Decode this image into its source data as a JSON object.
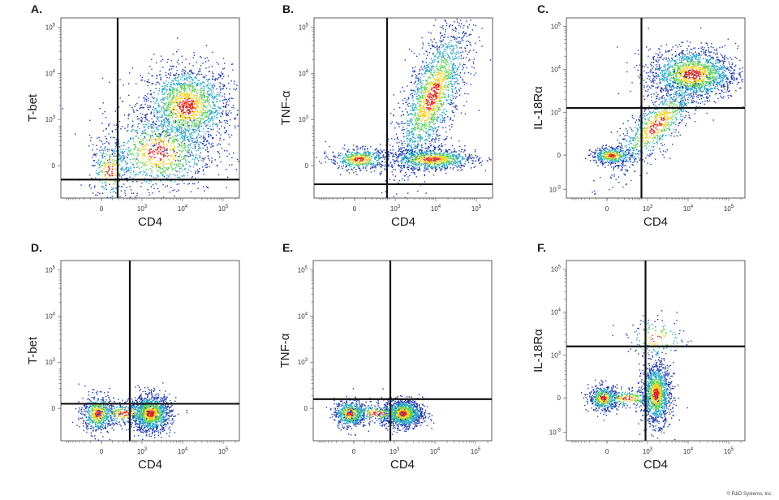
{
  "copyright": "© R&D Systems, Inc.",
  "colors": {
    "low": "#1f3aa8",
    "mid": "#2aa6c8",
    "mid2": "#5fcf5a",
    "high": "#f2d12a",
    "peak": "#e0261b"
  },
  "chart_data": [
    {
      "panel": "A.",
      "type": "scatter",
      "xlabel": "CD4",
      "ylabel": "T-bet",
      "x_ticks": [
        "0",
        "10^3",
        "10^4",
        "10^5"
      ],
      "y_ticks": [
        "0",
        "10^3",
        "10^4",
        "10^5"
      ],
      "gate": {
        "x": 0.4,
        "y": -0.3
      },
      "populations": [
        {
          "x": 2.1,
          "y": 1.3,
          "sx": 0.55,
          "sy": 0.45,
          "n": 1700
        },
        {
          "x": 1.4,
          "y": 0.3,
          "sx": 0.7,
          "sy": 0.45,
          "n": 1000
        },
        {
          "x": 0.2,
          "y": -0.1,
          "sx": 0.25,
          "sy": 0.35,
          "n": 250
        }
      ]
    },
    {
      "panel": "B.",
      "type": "scatter",
      "xlabel": "CD4",
      "ylabel": "TNF-α",
      "x_ticks": [
        "0",
        "10^3",
        "10^4",
        "10^5"
      ],
      "y_ticks": [
        "0",
        "10^3",
        "10^4",
        "10^5"
      ],
      "gate": {
        "x": 0.8,
        "y": -0.4
      },
      "populations": [
        {
          "x": 1.9,
          "y": 1.5,
          "sx": 0.45,
          "sy": 0.8,
          "n": 1800,
          "rho": 0.7
        },
        {
          "x": 1.9,
          "y": 0.15,
          "sx": 0.55,
          "sy": 0.12,
          "n": 900
        },
        {
          "x": 0.1,
          "y": 0.15,
          "sx": 0.35,
          "sy": 0.12,
          "n": 500
        }
      ]
    },
    {
      "panel": "C.",
      "type": "scatter",
      "xlabel": "CD4",
      "ylabel": "IL-18Rα",
      "x_ticks": [
        "0",
        "10^3",
        "10^4",
        "10^5"
      ],
      "y_ticks": [
        "10^-3",
        "0",
        "10^3",
        "10^4",
        "10^5"
      ],
      "gate": {
        "x": 0.85,
        "y": 1.1
      },
      "populations": [
        {
          "x": 2.1,
          "y": 1.9,
          "sx": 0.55,
          "sy": 0.3,
          "n": 1700
        },
        {
          "x": 1.2,
          "y": 0.7,
          "sx": 0.55,
          "sy": 0.55,
          "n": 900,
          "rho": 0.8
        },
        {
          "x": 0.1,
          "y": 0.0,
          "sx": 0.25,
          "sy": 0.1,
          "n": 400
        }
      ]
    },
    {
      "panel": "D.",
      "type": "scatter",
      "xlabel": "CD4",
      "ylabel": "T-bet",
      "x_ticks": [
        "0",
        "10^3",
        "10^4",
        "10^5"
      ],
      "y_ticks": [
        "0",
        "10^3",
        "10^4",
        "10^5"
      ],
      "gate": {
        "x": 0.7,
        "y": 0.1
      },
      "populations": [
        {
          "x": 1.2,
          "y": -0.1,
          "sx": 0.25,
          "sy": 0.2,
          "n": 1300
        },
        {
          "x": -0.1,
          "y": -0.1,
          "sx": 0.2,
          "sy": 0.2,
          "n": 600
        },
        {
          "x": 0.55,
          "y": -0.1,
          "sx": 0.35,
          "sy": 0.12,
          "n": 250
        }
      ]
    },
    {
      "panel": "E.",
      "type": "scatter",
      "xlabel": "CD4",
      "ylabel": "TNF-α",
      "x_ticks": [
        "0",
        "10^3",
        "10^4",
        "10^5"
      ],
      "y_ticks": [
        "0",
        "10^3",
        "10^4",
        "10^5"
      ],
      "gate": {
        "x": 0.9,
        "y": 0.2
      },
      "populations": [
        {
          "x": 1.2,
          "y": -0.1,
          "sx": 0.25,
          "sy": 0.15,
          "n": 1300
        },
        {
          "x": -0.1,
          "y": -0.1,
          "sx": 0.2,
          "sy": 0.15,
          "n": 600
        },
        {
          "x": 0.55,
          "y": -0.1,
          "sx": 0.4,
          "sy": 0.1,
          "n": 250
        }
      ]
    },
    {
      "panel": "F.",
      "type": "scatter",
      "xlabel": "CD4",
      "ylabel": "IL-18Rα",
      "x_ticks": [
        "0",
        "10^3",
        "10^4",
        "10^5"
      ],
      "y_ticks": [
        "10^-3",
        "0",
        "10^3",
        "10^4",
        "10^5"
      ],
      "gate": {
        "x": 0.95,
        "y": 1.2
      },
      "populations": [
        {
          "x": 1.2,
          "y": 0.1,
          "sx": 0.18,
          "sy": 0.35,
          "n": 1300
        },
        {
          "x": -0.1,
          "y": 0.0,
          "sx": 0.18,
          "sy": 0.15,
          "n": 500
        },
        {
          "x": 0.5,
          "y": 0.0,
          "sx": 0.35,
          "sy": 0.1,
          "n": 250
        },
        {
          "x": 1.2,
          "y": 1.4,
          "sx": 0.35,
          "sy": 0.25,
          "n": 150
        }
      ]
    }
  ]
}
